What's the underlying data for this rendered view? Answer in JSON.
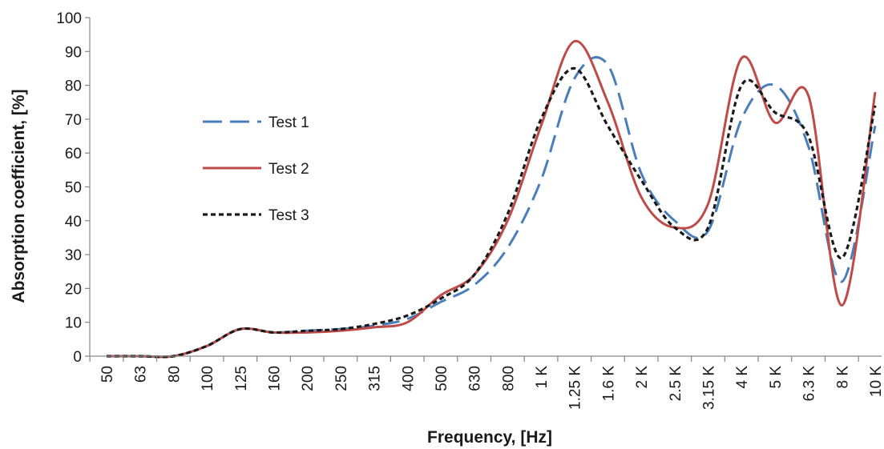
{
  "chart_data": {
    "type": "line",
    "xlabel": "Frequency, [Hz]",
    "ylabel": "Absorption coefficient, [%]",
    "ylim": [
      0,
      100
    ],
    "yticks": [
      0,
      10,
      20,
      30,
      40,
      50,
      60,
      70,
      80,
      90,
      100
    ],
    "categories": [
      "50",
      "63",
      "80",
      "100",
      "125",
      "160",
      "200",
      "250",
      "315",
      "400",
      "500",
      "630",
      "800",
      "1 K",
      "1.25 K",
      "1.6 K",
      "2 K",
      "2.5 K",
      "3.15 K",
      "4 K",
      "5 K",
      "6.3 K",
      "8 K",
      "10 K"
    ],
    "grid": false,
    "legend_position": "left",
    "series": [
      {
        "name": "Test 1",
        "color": "#4a7ebb",
        "dash": "dashed",
        "values": [
          0,
          0,
          0,
          3,
          8,
          7,
          7.5,
          8,
          9,
          11,
          16,
          21,
          32,
          52,
          82,
          86,
          54,
          40,
          37,
          70,
          80,
          62,
          22,
          68
        ]
      },
      {
        "name": "Test 2",
        "color": "#be4b48",
        "dash": "solid",
        "values": [
          0,
          0,
          0,
          3,
          8,
          7,
          7,
          7.5,
          8.5,
          10,
          18,
          24,
          40,
          68,
          93,
          75,
          47,
          38,
          45,
          88,
          69,
          77,
          15,
          78
        ]
      },
      {
        "name": "Test 3",
        "color": "#1a1a1a",
        "dash": "dotted",
        "values": [
          0,
          0,
          0,
          3,
          8,
          7,
          7.5,
          8,
          9.5,
          12,
          17,
          24,
          42,
          70,
          85,
          68,
          52,
          38,
          38,
          80,
          72,
          65,
          29,
          74
        ]
      }
    ]
  }
}
